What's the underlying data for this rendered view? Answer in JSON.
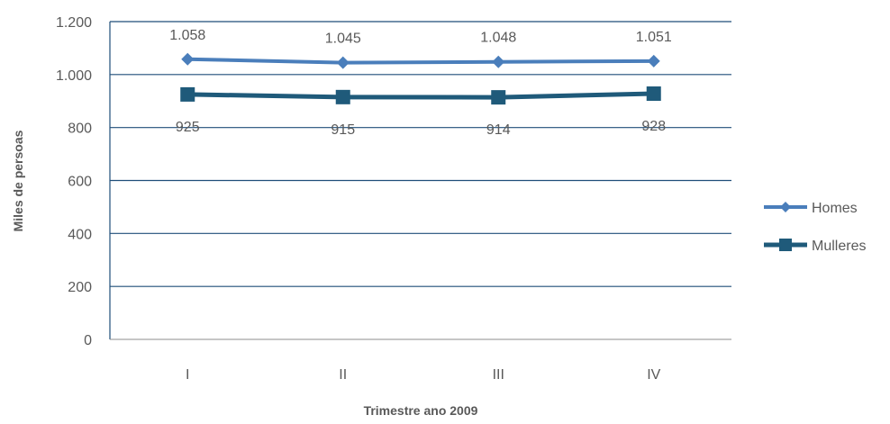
{
  "chart_data": {
    "type": "line",
    "title": "",
    "xlabel": "Trimestre ano 2009",
    "ylabel": "Miles de persoas",
    "categories": [
      "I",
      "II",
      "III",
      "IV"
    ],
    "ylim": [
      0,
      1200
    ],
    "yticks": [
      0,
      200,
      400,
      600,
      800,
      1000,
      1200
    ],
    "ytick_labels": [
      "0",
      "200",
      "400",
      "600",
      "800",
      "1.000",
      "1.200"
    ],
    "grid": true,
    "legend_position": "right",
    "series": [
      {
        "name": "Homes",
        "values": [
          1058,
          1045,
          1048,
          1051
        ],
        "labels": [
          "1.058",
          "1.045",
          "1.048",
          "1.051"
        ],
        "color": "#4a7ebb",
        "marker": "diamond"
      },
      {
        "name": "Mulleres",
        "values": [
          925,
          915,
          914,
          928
        ],
        "labels": [
          "925",
          "915",
          "914",
          "928"
        ],
        "color": "#1f5a7a",
        "marker": "square"
      }
    ]
  }
}
